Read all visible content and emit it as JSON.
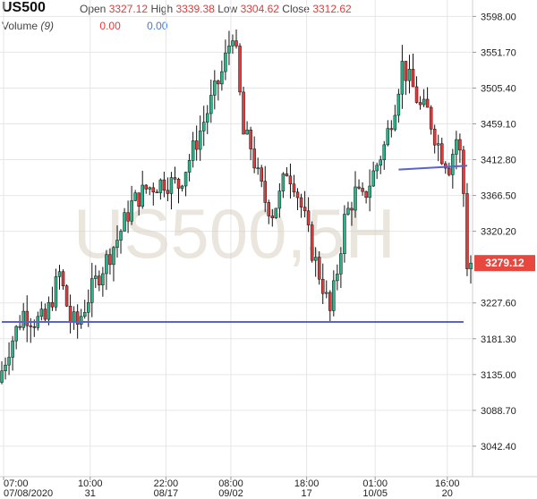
{
  "header": {
    "symbol": "US500",
    "open_label": "Open",
    "open_value": "3327.12",
    "high_label": "High",
    "high_value": "3339.38",
    "low_label": "Low",
    "low_value": "3304.62",
    "close_label": "Close",
    "close_value": "3312.62",
    "volume_label": "Volume",
    "volume_period": "(9)",
    "volume_value_1": "0.00",
    "volume_value_2": "0.00"
  },
  "watermark": "US500,5H",
  "last_price": "3279.12",
  "colors": {
    "up": "#2bb38a",
    "down": "#e23b3b",
    "last_price_bg": "#e8473f",
    "trendline": "#5b63c9",
    "grid": "#e6e6e6"
  },
  "chart_data": {
    "type": "candlestick",
    "title": "",
    "ylim": [
      3003,
      3610
    ],
    "y_ticks": [
      "3598.00",
      "3551.70",
      "3505.40",
      "3459.10",
      "3412.80",
      "3366.50",
      "3320.20",
      "3227.60",
      "3181.30",
      "3135.00",
      "3088.70",
      "3042.40"
    ],
    "y_tick_values": [
      3598.0,
      3551.7,
      3505.4,
      3459.1,
      3412.8,
      3366.5,
      3320.2,
      3227.6,
      3181.3,
      3135.0,
      3088.7,
      3042.4
    ],
    "x_ticks": [
      {
        "time": "07:00",
        "date": "07/08/2020"
      },
      {
        "time": "10:00",
        "date": "31"
      },
      {
        "time": "22:00",
        "date": "08/17"
      },
      {
        "time": "08:00",
        "date": "09/02"
      },
      {
        "time": "18:00",
        "date": "17"
      },
      {
        "time": "01:00",
        "date": "10/05"
      },
      {
        "time": "16:00",
        "date": "20"
      }
    ],
    "x_tick_positions": [
      0.5,
      24.5,
      45.5,
      63.5,
      84.5,
      103.5,
      123.5
    ],
    "candle_count": 131,
    "path_points": [
      [
        0,
        3125
      ],
      [
        3,
        3170
      ],
      [
        7,
        3215
      ],
      [
        10,
        3205
      ],
      [
        13,
        3205
      ],
      [
        17,
        3265
      ],
      [
        20,
        3205
      ],
      [
        22,
        3200
      ],
      [
        25,
        3235
      ],
      [
        28,
        3265
      ],
      [
        33,
        3310
      ],
      [
        37,
        3355
      ],
      [
        41,
        3375
      ],
      [
        46,
        3385
      ],
      [
        50,
        3380
      ],
      [
        54,
        3425
      ],
      [
        58,
        3475
      ],
      [
        62,
        3525
      ],
      [
        65,
        3580
      ],
      [
        66,
        3545
      ],
      [
        68,
        3445
      ],
      [
        70,
        3430
      ],
      [
        72,
        3390
      ],
      [
        74,
        3360
      ],
      [
        76,
        3345
      ],
      [
        78,
        3365
      ],
      [
        80,
        3400
      ],
      [
        82,
        3385
      ],
      [
        85,
        3335
      ],
      [
        87,
        3295
      ],
      [
        90,
        3250
      ],
      [
        92,
        3215
      ],
      [
        94,
        3270
      ],
      [
        96,
        3335
      ],
      [
        99,
        3370
      ],
      [
        101,
        3360
      ],
      [
        104,
        3395
      ],
      [
        107,
        3430
      ],
      [
        110,
        3485
      ],
      [
        112,
        3535
      ],
      [
        115,
        3505
      ],
      [
        117,
        3480
      ],
      [
        119,
        3475
      ],
      [
        121,
        3445
      ],
      [
        123,
        3420
      ],
      [
        125,
        3405
      ],
      [
        127,
        3440
      ],
      [
        128,
        3420
      ],
      [
        129,
        3370
      ],
      [
        130,
        3279
      ]
    ],
    "trendlines": [
      {
        "from": [
          0,
          3203
        ],
        "to": [
          128,
          3203
        ]
      },
      {
        "from": [
          110,
          3400
        ],
        "to": [
          129,
          3405
        ]
      }
    ]
  }
}
